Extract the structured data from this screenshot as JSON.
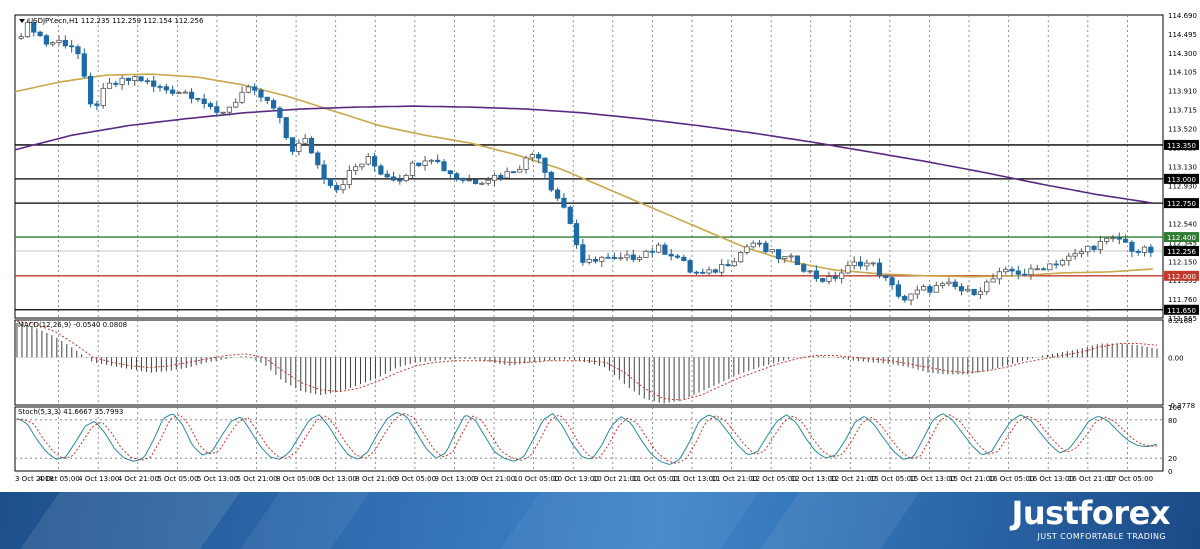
{
  "chart_data": [
    {
      "type": "candlestick",
      "header": "USDJPY.ecn,H1  112.235 112.259 112.154 112.256",
      "price_scale": [
        "114.690",
        "114.495",
        "114.300",
        "114.105",
        "113.910",
        "113.715",
        "113.520",
        "113.325",
        "113.130",
        "112.930",
        "112.735",
        "112.540",
        "112.345",
        "112.150",
        "111.955",
        "111.760",
        "111.565"
      ],
      "ylim": [
        111.565,
        114.69
      ],
      "level_lines": [
        {
          "label": "113.350",
          "price": 113.35,
          "color": "#000000"
        },
        {
          "label": "113.000",
          "price": 113.0,
          "color": "#000000"
        },
        {
          "label": "112.750",
          "price": 112.75,
          "color": "#000000"
        },
        {
          "label": "112.400",
          "price": 112.4,
          "color": "#2e7d32"
        },
        {
          "label": "112.256",
          "price": 112.256,
          "color": "#000000",
          "current": true
        },
        {
          "label": "112.000",
          "price": 112.0,
          "color": "#c0392b"
        },
        {
          "label": "111.650",
          "price": 111.65,
          "color": "#000000"
        }
      ],
      "x_labels": [
        "3 Oct 2018",
        "4 Oct 05:00",
        "4 Oct 13:00",
        "4 Oct 21:00",
        "5 Oct 05:00",
        "5 Oct 13:00",
        "5 Oct 21:00",
        "8 Oct 05:00",
        "8 Oct 13:00",
        "8 Oct 21:00",
        "9 Oct 05:00",
        "9 Oct 13:00",
        "9 Oct 21:00",
        "10 Oct 05:00",
        "10 Oct 13:00",
        "10 Oct 21:00",
        "11 Oct 05:00",
        "11 Oct 13:00",
        "11 Oct 21:00",
        "12 Oct 05:00",
        "12 Oct 13:00",
        "12 Oct 21:00",
        "15 Oct 05:00",
        "15 Oct 13:00",
        "15 Oct 21:00",
        "16 Oct 05:00",
        "16 Oct 13:00",
        "16 Oct 21:00",
        "17 Oct 05:00"
      ],
      "close_path": [
        114.45,
        114.6,
        114.4,
        114.42,
        114.36,
        113.7,
        113.95,
        114.0,
        114.05,
        113.95,
        113.92,
        113.9,
        113.85,
        113.65,
        113.75,
        113.92,
        113.85,
        113.7,
        113.3,
        113.4,
        113.05,
        112.9,
        113.1,
        113.2,
        113.05,
        113.0,
        113.15,
        113.25,
        113.1,
        113.0,
        112.98,
        113.02,
        113.05,
        113.15,
        113.3,
        112.9,
        112.65,
        112.1,
        112.2,
        112.15,
        112.18,
        112.25,
        112.28,
        112.22,
        112.05,
        112.0,
        112.1,
        112.2,
        112.35,
        112.25,
        112.18,
        112.15,
        112.0,
        111.95,
        112.05,
        112.15,
        112.1,
        111.9,
        111.75,
        111.85,
        111.88,
        111.9,
        111.82,
        111.88,
        112.0,
        112.05,
        112.02,
        112.1,
        112.15,
        112.2,
        112.3,
        112.35,
        112.38,
        112.25,
        112.256
      ],
      "series": [
        {
          "name": "MA fast",
          "color": "#c8a84a",
          "values": [
            113.9,
            114.0,
            114.07,
            114.08,
            114.05,
            113.97,
            113.85,
            113.7,
            113.55,
            113.45,
            113.37,
            113.25,
            113.1,
            112.9,
            112.7,
            112.5,
            112.3,
            112.15,
            112.06,
            112.02,
            112.0,
            111.99,
            112.0,
            112.03,
            112.04,
            112.07
          ]
        },
        {
          "name": "MA slow",
          "color": "#5a2a82",
          "values": [
            113.3,
            113.45,
            113.55,
            113.62,
            113.68,
            113.72,
            113.74,
            113.75,
            113.74,
            113.72,
            113.68,
            113.62,
            113.55,
            113.47,
            113.38,
            113.28,
            113.18,
            113.07,
            112.95,
            112.84,
            112.75
          ]
        }
      ]
    },
    {
      "type": "histogram",
      "label": "MACD(12,26,9) -0.0540 0.0808",
      "scale": [
        "0.2168",
        "0.00",
        "-0.2778"
      ],
      "ylim": [
        -0.2778,
        0.2168
      ],
      "bars_path": [
        0.2,
        0.17,
        0.12,
        0.05,
        -0.03,
        -0.05,
        -0.07,
        -0.09,
        -0.08,
        -0.06,
        -0.03,
        -0.01,
        0.01,
        -0.04,
        -0.14,
        -0.2,
        -0.22,
        -0.2,
        -0.16,
        -0.12,
        -0.06,
        -0.03,
        -0.02,
        -0.01,
        -0.01,
        -0.03,
        -0.05,
        -0.03,
        -0.02,
        -0.01,
        -0.03,
        -0.06,
        -0.16,
        -0.24,
        -0.27,
        -0.25,
        -0.2,
        -0.15,
        -0.1,
        -0.06,
        -0.03,
        0.0,
        0.01,
        0.0,
        -0.02,
        -0.03,
        -0.04,
        -0.06,
        -0.09,
        -0.1,
        -0.1,
        -0.08,
        -0.05,
        -0.02,
        0.01,
        0.03,
        0.05,
        0.08,
        0.08,
        0.07,
        0.05
      ],
      "signal_path": [
        0.21,
        0.19,
        0.15,
        0.08,
        0.0,
        -0.03,
        -0.05,
        -0.06,
        -0.05,
        -0.03,
        -0.01,
        0.01,
        0.02,
        0.0,
        -0.08,
        -0.15,
        -0.19,
        -0.2,
        -0.18,
        -0.14,
        -0.09,
        -0.05,
        -0.03,
        -0.02,
        -0.02,
        -0.02,
        -0.03,
        -0.03,
        -0.02,
        -0.02,
        -0.02,
        -0.03,
        -0.09,
        -0.18,
        -0.24,
        -0.25,
        -0.22,
        -0.17,
        -0.12,
        -0.08,
        -0.04,
        -0.01,
        0.01,
        0.01,
        0.0,
        -0.01,
        -0.02,
        -0.04,
        -0.06,
        -0.08,
        -0.09,
        -0.08,
        -0.06,
        -0.03,
        -0.01,
        0.01,
        0.03,
        0.06,
        0.08,
        0.08,
        0.07
      ],
      "colors": {
        "bars": "#404040",
        "signal": "#c0392b"
      }
    },
    {
      "type": "line",
      "label": "Stoch(5,3,3) 41.6667 35.7993",
      "scale": [
        "100",
        "80",
        "20",
        "0"
      ],
      "ylim": [
        0,
        100
      ],
      "levels": [
        80,
        20
      ],
      "main_path": [
        82,
        75,
        50,
        30,
        18,
        22,
        45,
        70,
        78,
        60,
        35,
        20,
        15,
        20,
        48,
        82,
        90,
        72,
        40,
        25,
        30,
        55,
        78,
        85,
        62,
        38,
        22,
        18,
        30,
        55,
        80,
        88,
        70,
        45,
        25,
        18,
        30,
        58,
        82,
        92,
        85,
        60,
        35,
        20,
        28,
        60,
        88,
        80,
        55,
        30,
        20,
        15,
        22,
        50,
        80,
        90,
        70,
        42,
        22,
        18,
        40,
        70,
        85,
        75,
        50,
        28,
        15,
        10,
        18,
        45,
        78,
        88,
        80,
        60,
        40,
        25,
        30,
        55,
        78,
        88,
        75,
        50,
        30,
        20,
        25,
        48,
        76,
        86,
        72,
        50,
        30,
        18,
        22,
        50,
        80,
        90,
        80,
        60,
        40,
        25,
        30,
        55,
        78,
        88,
        80,
        60,
        42,
        28,
        35,
        55,
        78,
        86,
        78,
        62,
        48,
        40,
        38,
        42
      ],
      "signal_color": "#c0392b",
      "main_color": "#2a8a9a"
    }
  ],
  "brand": {
    "name": "Justforex",
    "tagline": "JUST COMFORTABLE TRADING"
  }
}
